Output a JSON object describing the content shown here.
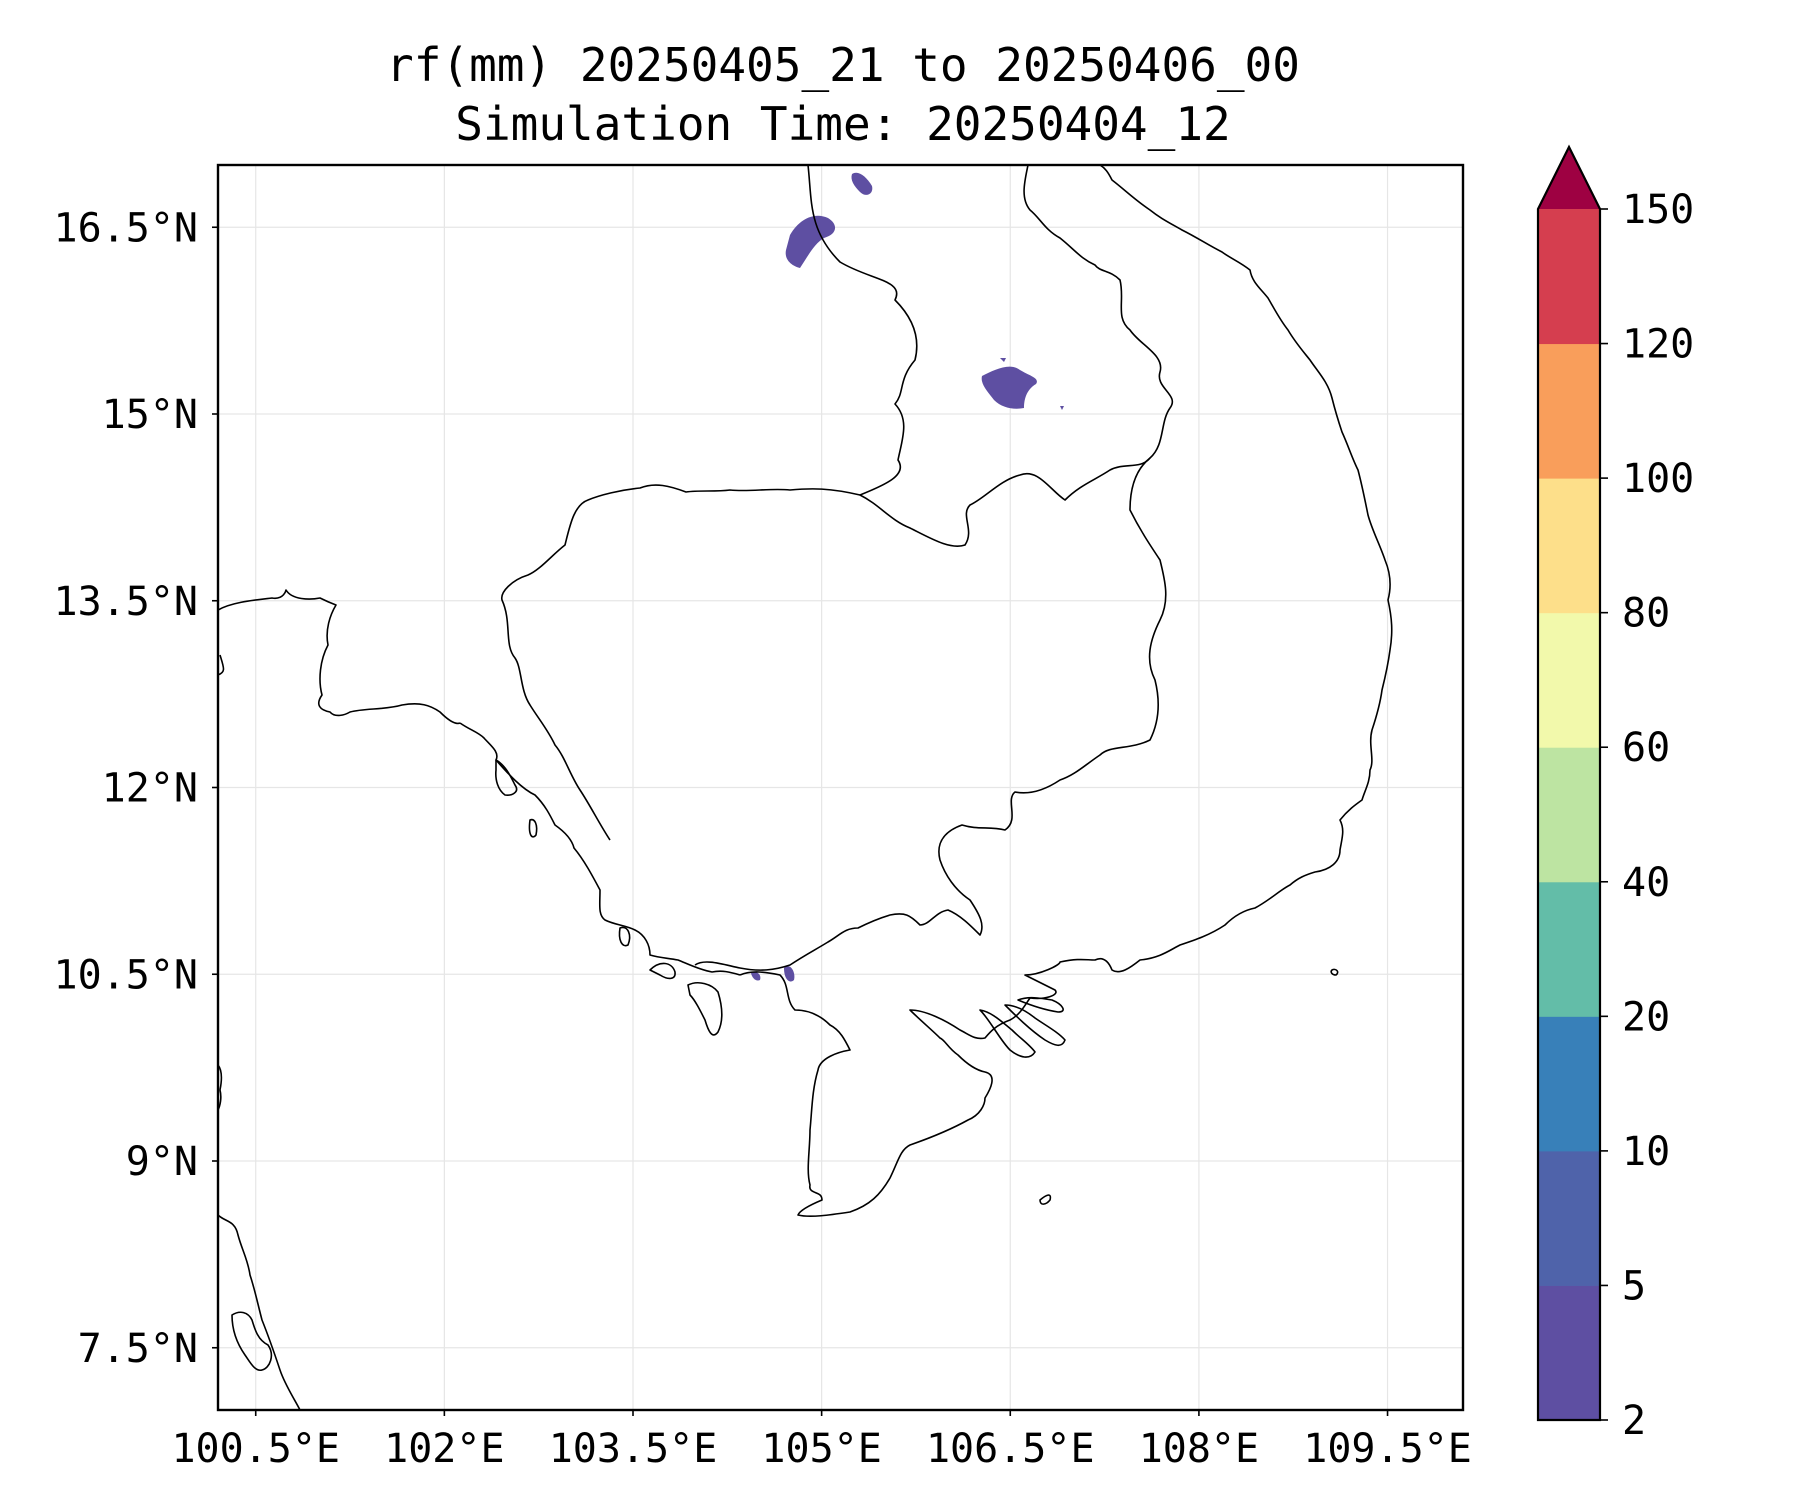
{
  "title_line1": "rf(mm) 20250405_21 to 20250406_00",
  "title_line2": "Simulation Time: 20250404_12",
  "map": {
    "lon_range": [
      100.2,
      110.1
    ],
    "lat_range": [
      7.0,
      17.0
    ],
    "x_ticks": [
      {
        "lon": 100.5,
        "label": "100.5°E"
      },
      {
        "lon": 102.0,
        "label": "102°E"
      },
      {
        "lon": 103.5,
        "label": "103.5°E"
      },
      {
        "lon": 105.0,
        "label": "105°E"
      },
      {
        "lon": 106.5,
        "label": "106.5°E"
      },
      {
        "lon": 108.0,
        "label": "108°E"
      },
      {
        "lon": 109.5,
        "label": "109.5°E"
      }
    ],
    "y_ticks": [
      {
        "lat": 16.5,
        "label": "16.5°N"
      },
      {
        "lat": 15.0,
        "label": "15°N"
      },
      {
        "lat": 13.5,
        "label": "13.5°N"
      },
      {
        "lat": 12.0,
        "label": "12°N"
      },
      {
        "lat": 10.5,
        "label": "10.5°N"
      },
      {
        "lat": 9.0,
        "label": "9°N"
      },
      {
        "lat": 7.5,
        "label": "7.5°N"
      }
    ],
    "grid": true,
    "rain_color": "#5e4fa2"
  },
  "colorbar": {
    "levels": [
      "2",
      "5",
      "10",
      "20",
      "40",
      "60",
      "80",
      "100",
      "120",
      "150"
    ],
    "colors": [
      "#5e4fa2",
      "#4f63aa",
      "#3880b9",
      "#63bda8",
      "#bde4a2",
      "#f2f9ab",
      "#fddf8a",
      "#f99e5b",
      "#d53e4f"
    ],
    "extend_color": "#9e0142",
    "extend": "max"
  }
}
